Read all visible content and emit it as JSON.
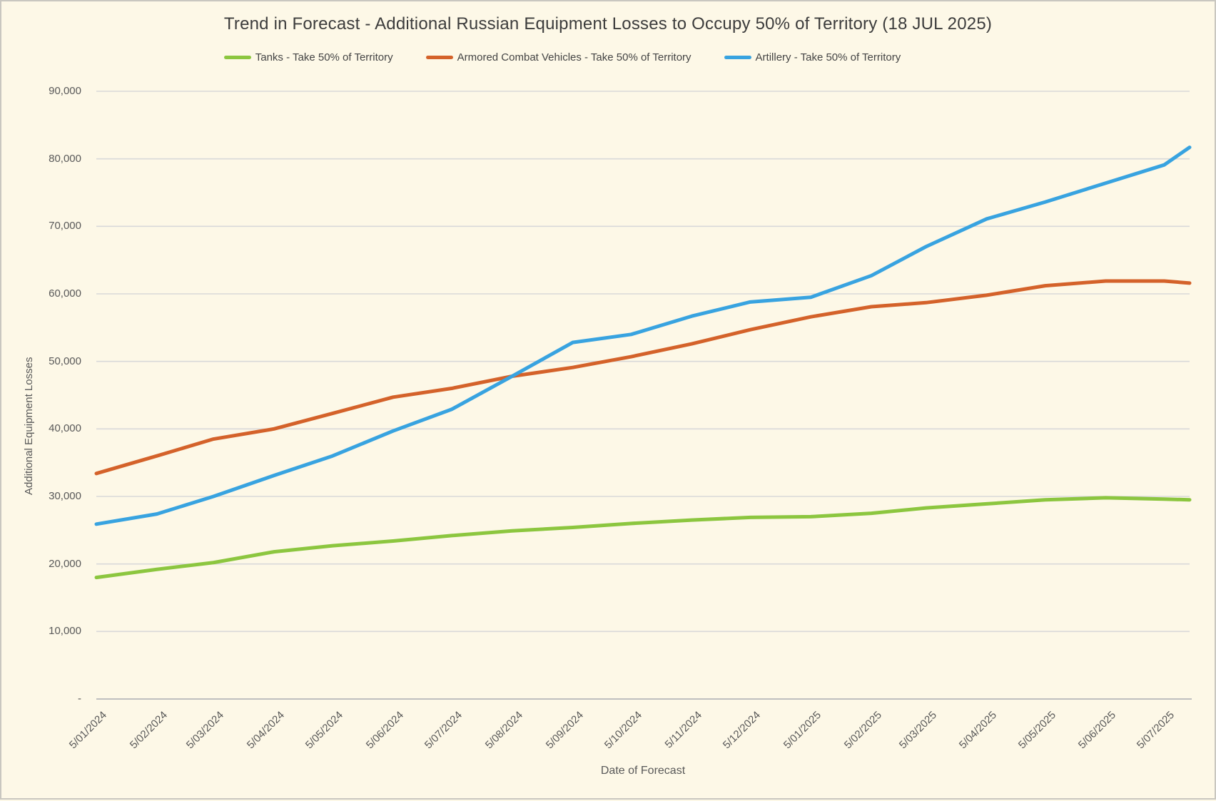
{
  "chart_data": {
    "type": "line",
    "title": "Trend in Forecast - Additional Russian Equipment Losses to Occupy 50% of Territory (18 JUL 2025)",
    "xlabel": "Date of Forecast",
    "ylabel": "Additional Equipment Losses",
    "ylim": [
      0,
      90000
    ],
    "grid": true,
    "legend_position": "top",
    "background_color": "#FDF8E7",
    "gridline_color": "#D9D9D9",
    "axis_line_color": "#BFBFBF",
    "text_color": "#595959",
    "y_tick_labels": [
      "90,000",
      "80,000",
      "70,000",
      "60,000",
      "50,000",
      "40,000",
      "30,000",
      "20,000",
      "10,000",
      "-"
    ],
    "x_tick_labels": [
      "5/01/2024",
      "5/02/2024",
      "5/03/2024",
      "5/04/2024",
      "5/05/2024",
      "5/06/2024",
      "5/07/2024",
      "5/08/2024",
      "5/09/2024",
      "5/10/2024",
      "5/11/2024",
      "5/12/2024",
      "5/01/2025",
      "5/02/2025",
      "5/03/2025",
      "5/04/2025",
      "5/05/2025",
      "5/06/2025",
      "5/07/2025"
    ],
    "x_tick_days": [
      0,
      31,
      60,
      91,
      121,
      152,
      182,
      213,
      244,
      274,
      305,
      335,
      366,
      397,
      425,
      456,
      486,
      517,
      547
    ],
    "x_days": [
      0,
      31,
      60,
      91,
      121,
      152,
      182,
      213,
      244,
      274,
      305,
      335,
      366,
      397,
      425,
      456,
      486,
      517,
      547,
      560
    ],
    "x_dates": [
      "5/01/2024",
      "5/02/2024",
      "5/03/2024",
      "5/04/2024",
      "5/05/2024",
      "5/06/2024",
      "5/07/2024",
      "5/08/2024",
      "5/09/2024",
      "5/10/2024",
      "5/11/2024",
      "5/12/2024",
      "5/01/2025",
      "5/02/2025",
      "5/03/2025",
      "5/04/2025",
      "5/05/2025",
      "5/06/2025",
      "5/07/2025",
      "7/18/2025"
    ],
    "series": [
      {
        "name": "Tanks - Take 50% of Territory",
        "color": "#8CC63F",
        "values": [
          18000,
          19200,
          20200,
          21800,
          22700,
          23400,
          24200,
          24900,
          25400,
          26000,
          26500,
          26900,
          27000,
          27500,
          28300,
          28900,
          29500,
          29800,
          29600,
          29500
        ]
      },
      {
        "name": "Armored Combat Vehicles - Take 50% of Territory",
        "color": "#D4622A",
        "values": [
          33400,
          36000,
          38500,
          40000,
          42300,
          44700,
          46000,
          47800,
          49100,
          50700,
          52600,
          54700,
          56600,
          58100,
          58700,
          59800,
          61200,
          61900,
          61900,
          61600
        ]
      },
      {
        "name": "Artillery - Take 50% of Territory",
        "color": "#38A3E0",
        "values": [
          25900,
          27400,
          30000,
          33100,
          36000,
          39700,
          42900,
          47800,
          52800,
          54000,
          56700,
          58800,
          59500,
          62700,
          67000,
          71100,
          73600,
          76400,
          79100,
          81700
        ]
      }
    ]
  }
}
